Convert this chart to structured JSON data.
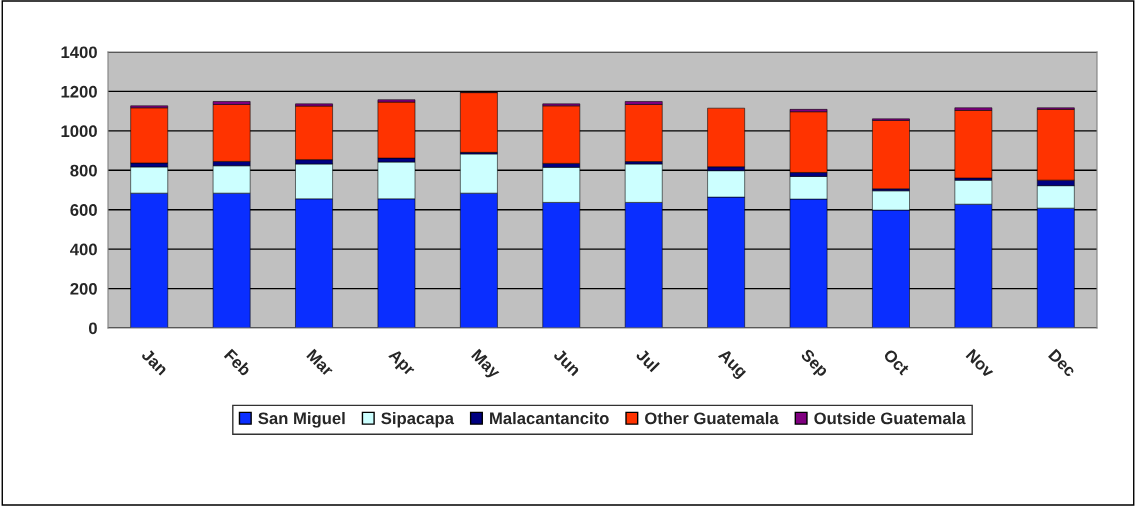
{
  "chart_data": {
    "type": "bar",
    "stacked": true,
    "categories": [
      "Jan",
      "Feb",
      "Mar",
      "Apr",
      "May",
      "Jun",
      "Jul",
      "Aug",
      "Sep",
      "Oct",
      "Nov",
      "Dec"
    ],
    "series": [
      {
        "name": "San Miguel",
        "color": "#0a2eff",
        "values": [
          684,
          684,
          655,
          655,
          684,
          637,
          637,
          664,
          654,
          598,
          628,
          608
        ]
      },
      {
        "name": "Sipacapa",
        "color": "#ccffff",
        "values": [
          133,
          139,
          177,
          187,
          199,
          178,
          195,
          134,
          115,
          98,
          122,
          114
        ]
      },
      {
        "name": "Malacantancito",
        "color": "#000080",
        "values": [
          20,
          22,
          22,
          20,
          8,
          20,
          12,
          20,
          20,
          10,
          11,
          28
        ]
      },
      {
        "name": "Other Guatemala",
        "color": "#ff3300",
        "values": [
          280,
          289,
          272,
          284,
          303,
          292,
          290,
          297,
          308,
          347,
          343,
          359
        ]
      },
      {
        "name": "Outside Guatemala",
        "color": "#800080",
        "values": [
          10,
          15,
          11,
          12,
          2,
          10,
          15,
          null,
          12,
          8,
          13,
          8
        ]
      }
    ],
    "ylim": [
      0,
      1400
    ],
    "yticks": [
      0,
      200,
      400,
      600,
      800,
      1000,
      1200,
      1400
    ],
    "grid": "y",
    "legend": "bottom"
  }
}
